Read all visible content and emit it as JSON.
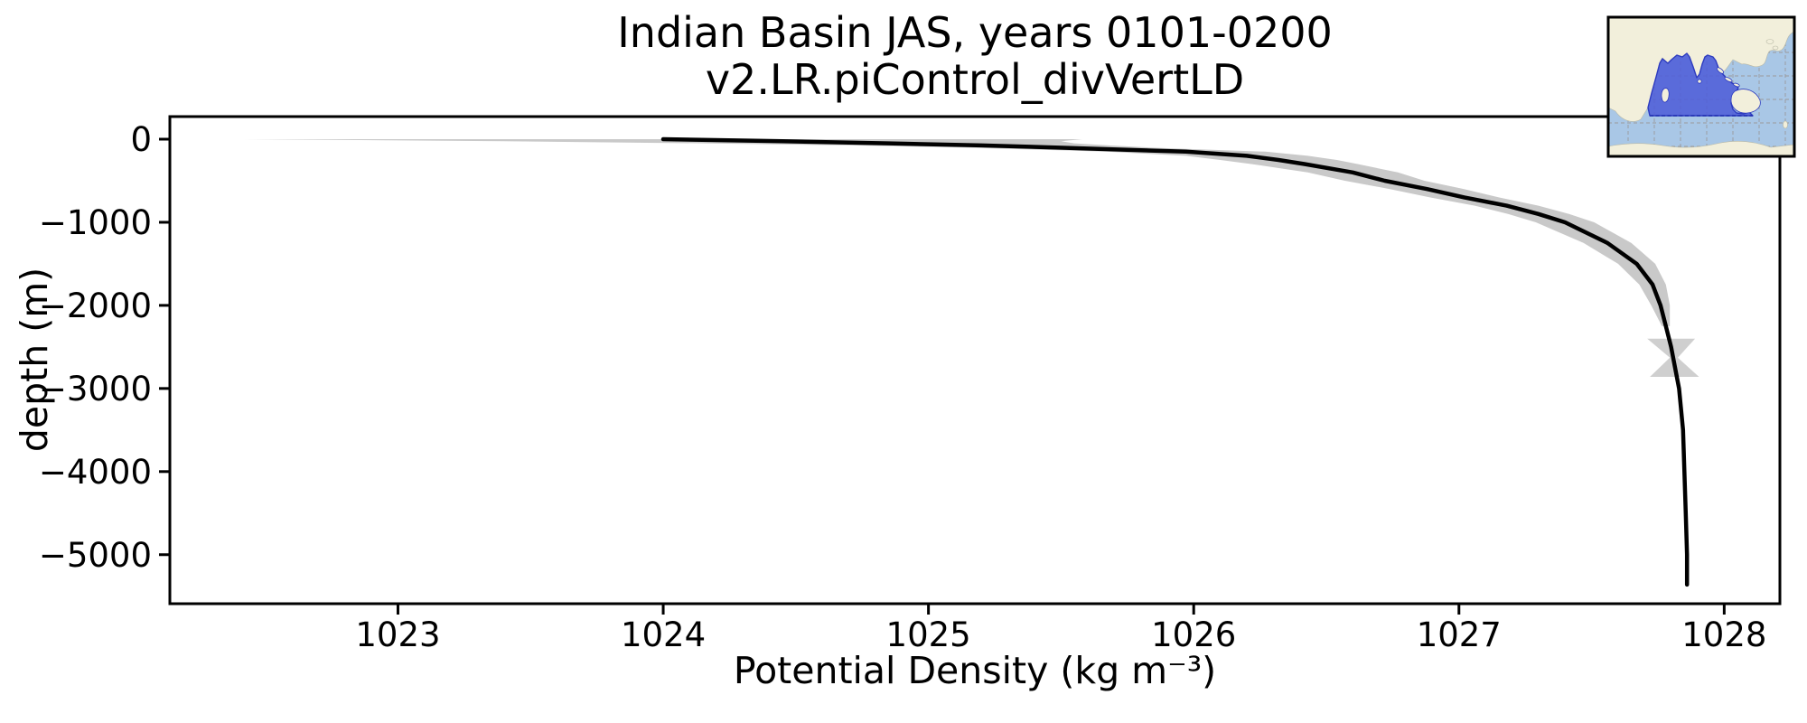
{
  "title": {
    "line1": "Indian Basin JAS, years 0101-0200",
    "line2": "v2.LR.piControl_divVertLD"
  },
  "axes": {
    "x_label": "Potential Density (kg m⁻³)",
    "y_label": "depth (m)",
    "x_ticks": [
      1023,
      1024,
      1025,
      1026,
      1027,
      1028
    ],
    "x_tick_labels": [
      "1023",
      "1024",
      "1025",
      "1026",
      "1027",
      "1028"
    ],
    "y_ticks": [
      0,
      -1000,
      -2000,
      -3000,
      -4000,
      -5000
    ],
    "y_tick_labels": [
      "0",
      "−1000",
      "−2000",
      "−3000",
      "−4000",
      "−5000"
    ],
    "x_range": [
      1022.14,
      1028.21
    ],
    "y_range": [
      -5590,
      272
    ]
  },
  "chart_data": {
    "type": "line",
    "title": "Indian Basin JAS, years 0101-0200 / v2.LR.piControl_divVertLD",
    "xlabel": "Potential Density (kg m⁻³)",
    "ylabel": "depth (m)",
    "xlim": [
      1022.14,
      1028.21
    ],
    "ylim": [
      -5590,
      272
    ],
    "grid": false,
    "legend": "none",
    "series": [
      {
        "name": "mean potential density profile",
        "style": "solid black line",
        "depth_m": [
          0,
          -25,
          -50,
          -75,
          -100,
          -150,
          -200,
          -250,
          -300,
          -400,
          -500,
          -600,
          -700,
          -800,
          -900,
          -1000,
          -1250,
          -1500,
          -1750,
          -2000,
          -2250,
          -2500,
          -2750,
          -3000,
          -3500,
          -4000,
          -4500,
          -5000,
          -5360
        ],
        "density_kg_m3": [
          1024.0,
          1024.45,
          1024.85,
          1025.2,
          1025.48,
          1025.97,
          1026.2,
          1026.32,
          1026.42,
          1026.6,
          1026.72,
          1026.88,
          1027.02,
          1027.18,
          1027.3,
          1027.4,
          1027.56,
          1027.67,
          1027.73,
          1027.76,
          1027.78,
          1027.8,
          1027.815,
          1027.83,
          1027.845,
          1027.85,
          1027.855,
          1027.86,
          1027.86
        ]
      },
      {
        "name": "std envelope (shaded band)",
        "style": "light gray fill around mean",
        "depth_m": [
          0,
          -25,
          -50,
          -75,
          -100,
          -150,
          -200,
          -250,
          -300,
          -400,
          -500,
          -600,
          -700,
          -800,
          -900,
          -1000,
          -1250,
          -1500,
          -1750,
          -2000,
          -2250
        ],
        "std_kg_m3": [
          1.58,
          1.05,
          0.7,
          0.48,
          0.35,
          0.3,
          0.23,
          0.22,
          0.2,
          0.17,
          0.15,
          0.14,
          0.13,
          0.12,
          0.115,
          0.11,
          0.09,
          0.07,
          0.05,
          0.035,
          0.015
        ]
      }
    ],
    "annotations": {
      "bowtie_patch_note": "small gray bowtie-shaped std patch where envelope crosses the nearly vertical deep profile",
      "bowtie_polygon_density_depth": [
        [
          1027.71,
          -2400
        ],
        [
          1027.89,
          -2400
        ],
        [
          1027.825,
          -2630
        ],
        [
          1027.905,
          -2860
        ],
        [
          1027.72,
          -2860
        ],
        [
          1027.795,
          -2630
        ]
      ]
    },
    "colors": {
      "line": "#000000",
      "band": "#c9c9c9",
      "bowtie": "#cfcfcf",
      "axis": "#000000",
      "map_ocean": "#a9c7e6",
      "map_land": "#f2efdb",
      "map_land_edge": "#b9b9a6",
      "map_basin_fill": "#4f5fd8",
      "map_basin_edge": "#2d3bbf",
      "map_grid": "#9a9a9a"
    }
  },
  "inset_map": {
    "name": "indian-basin-region-map",
    "highlighted_region": "Indian Ocean basin"
  }
}
